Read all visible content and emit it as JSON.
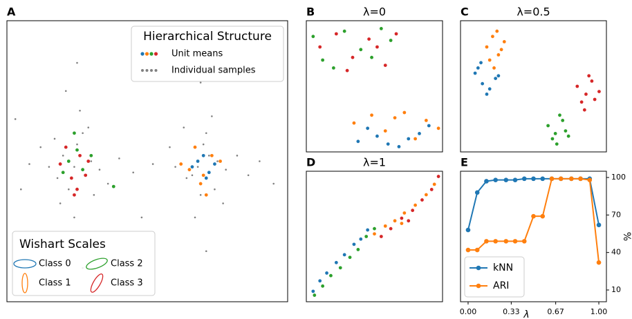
{
  "chart_data": [
    {
      "type": "scatter",
      "label": "A",
      "xlim": [
        0,
        100
      ],
      "ylim": [
        0,
        100
      ],
      "legend_title": "Hierarchical Structure",
      "legend_loc": "upper right",
      "means_label": "Unit means",
      "legend2_title": "Wishart Scales",
      "legend2_loc": "lower left",
      "series": [
        {
          "name": "Individual samples",
          "color": "#808080",
          "x": [
            24,
            20,
            28,
            18,
            30,
            25,
            22,
            27,
            15,
            33,
            12,
            36,
            24,
            26,
            19,
            29,
            8,
            40,
            23,
            21,
            31,
            17,
            45,
            5,
            25,
            27,
            68,
            72,
            66,
            75,
            70,
            64,
            78,
            71,
            69,
            74,
            60,
            82,
            67,
            73,
            58,
            86,
            71,
            69,
            77,
            63,
            90,
            52,
            70,
            95,
            3,
            48
          ],
          "values": [
            48,
            52,
            45,
            44,
            50,
            56,
            40,
            60,
            48,
            47,
            55,
            42,
            30,
            68,
            35,
            62,
            49,
            51,
            20,
            75,
            38,
            58,
            46,
            40,
            85,
            12,
            48,
            52,
            45,
            50,
            56,
            44,
            47,
            60,
            38,
            40,
            48,
            52,
            30,
            66,
            55,
            45,
            18,
            78,
            35,
            62,
            50,
            49,
            88,
            42,
            65,
            30
          ]
        },
        {
          "name": "Class 0",
          "color": "#1f77b4",
          "x": [
            68,
            72,
            70,
            66,
            74,
            71
          ],
          "values": [
            50,
            46,
            52,
            48,
            49,
            44
          ]
        },
        {
          "name": "Class 1",
          "color": "#ff7f0e",
          "x": [
            65,
            73,
            69,
            76,
            67,
            71,
            62,
            70
          ],
          "values": [
            47,
            52,
            42,
            50,
            55,
            38,
            49,
            45
          ]
        },
        {
          "name": "Class 2",
          "color": "#2ca02c",
          "x": [
            22,
            27,
            25,
            20,
            30,
            24,
            38
          ],
          "values": [
            50,
            47,
            54,
            46,
            52,
            60,
            41
          ]
        },
        {
          "name": "Class 3",
          "color": "#d62728",
          "x": [
            23,
            26,
            19,
            28,
            24,
            21,
            29,
            25
          ],
          "values": [
            44,
            52,
            49,
            45,
            38,
            55,
            50,
            40
          ]
        }
      ]
    },
    {
      "type": "scatter",
      "label": "B",
      "title": "λ=0",
      "xlim": [
        0,
        100
      ],
      "ylim": [
        0,
        100
      ],
      "series": [
        {
          "color": "#1f77b4",
          "x": [
            38,
            52,
            60,
            75,
            83,
            45,
            68,
            90
          ],
          "values": [
            8,
            12,
            6,
            10,
            14,
            18,
            4,
            20
          ]
        },
        {
          "color": "#ff7f0e",
          "x": [
            35,
            48,
            58,
            72,
            88,
            97,
            65,
            80
          ],
          "values": [
            22,
            28,
            16,
            30,
            24,
            18,
            26,
            10
          ]
        },
        {
          "color": "#2ca02c",
          "x": [
            5,
            12,
            28,
            40,
            55,
            62,
            20,
            48
          ],
          "values": [
            88,
            70,
            92,
            78,
            94,
            85,
            64,
            72
          ]
        },
        {
          "color": "#d62728",
          "x": [
            10,
            22,
            34,
            46,
            58,
            66,
            30,
            52
          ],
          "values": [
            80,
            90,
            72,
            86,
            66,
            90,
            62,
            80
          ]
        }
      ]
    },
    {
      "type": "scatter",
      "label": "C",
      "title": "λ=0.5",
      "xlim": [
        0,
        100
      ],
      "ylim": [
        0,
        100
      ],
      "series": [
        {
          "color": "#1f77b4",
          "x": [
            10,
            15,
            20,
            24,
            12,
            18,
            26,
            14
          ],
          "values": [
            60,
            52,
            48,
            56,
            64,
            44,
            58,
            68
          ]
        },
        {
          "color": "#ff7f0e",
          "x": [
            18,
            22,
            26,
            30,
            20,
            25,
            28,
            23
          ],
          "values": [
            80,
            88,
            74,
            84,
            70,
            92,
            78,
            64
          ]
        },
        {
          "color": "#2ca02c",
          "x": [
            60,
            65,
            70,
            72,
            63,
            68,
            74,
            66
          ],
          "values": [
            20,
            14,
            24,
            16,
            10,
            28,
            12,
            6
          ]
        },
        {
          "color": "#d62728",
          "x": [
            80,
            86,
            90,
            95,
            83,
            88,
            92,
            85
          ],
          "values": [
            50,
            44,
            54,
            46,
            38,
            58,
            40,
            32
          ]
        }
      ]
    },
    {
      "type": "scatter",
      "label": "D",
      "title": "λ=1",
      "xlim": [
        0,
        100
      ],
      "ylim": [
        0,
        100
      ],
      "series": [
        {
          "color": "#1f77b4",
          "x": [
            5,
            10,
            15,
            22,
            28,
            35,
            40,
            45
          ],
          "values": [
            8,
            16,
            22,
            30,
            36,
            44,
            48,
            55
          ]
        },
        {
          "color": "#2ca02c",
          "x": [
            6,
            12,
            18,
            25,
            32,
            38,
            44,
            50
          ],
          "values": [
            5,
            12,
            20,
            26,
            34,
            40,
            50,
            56
          ]
        },
        {
          "color": "#ff7f0e",
          "x": [
            50,
            58,
            65,
            72,
            80,
            88,
            94,
            70
          ],
          "values": [
            52,
            58,
            62,
            68,
            74,
            82,
            90,
            60
          ]
        },
        {
          "color": "#d62728",
          "x": [
            55,
            62,
            70,
            78,
            85,
            92,
            97,
            75
          ],
          "values": [
            50,
            56,
            64,
            70,
            78,
            86,
            96,
            62
          ]
        }
      ]
    },
    {
      "type": "line",
      "label": "E",
      "x_label": "λ",
      "y_label": "%",
      "xlim": [
        -0.058,
        1.058
      ],
      "ylim": [
        0.6,
        105
      ],
      "yaxis_position": "right",
      "legend_loc": "lower left",
      "xticks": [
        {
          "value": 0,
          "label": "0.00"
        },
        {
          "value": 0.33,
          "label": "0.33"
        },
        {
          "value": 0.67,
          "label": "0.67"
        },
        {
          "value": 1,
          "label": "1.00"
        }
      ],
      "yticks": [
        10,
        40,
        70,
        100
      ],
      "x": [
        0,
        0.07,
        0.14,
        0.21,
        0.29,
        0.36,
        0.43,
        0.5,
        0.57,
        0.64,
        0.71,
        0.79,
        0.86,
        0.93,
        1
      ],
      "series": [
        {
          "name": "kNN",
          "color": "#1f77b4",
          "values": [
            58,
            88,
            97,
            98,
            98,
            98,
            99,
            99,
            99,
            99,
            99,
            99,
            99,
            99,
            62
          ]
        },
        {
          "name": "ARI",
          "color": "#ff7f0e",
          "values": [
            42,
            42,
            49,
            49,
            49,
            49,
            49,
            69,
            69,
            99,
            99,
            99,
            99,
            98,
            32
          ]
        }
      ]
    }
  ]
}
